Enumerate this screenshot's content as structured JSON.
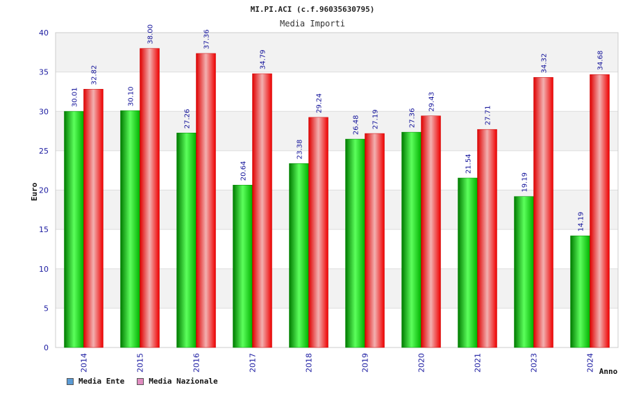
{
  "chart_data": {
    "type": "bar",
    "title": "MI.PI.ACI (c.f.96035630795)",
    "subtitle": "Media Importi",
    "xlabel": "Anno",
    "ylabel": "Euro",
    "ylim": [
      0,
      40
    ],
    "yticks": [
      "0",
      "5",
      "10",
      "15",
      "20",
      "25",
      "30",
      "35",
      "40"
    ],
    "grid": true,
    "legend_position": "bottom-left",
    "categories": [
      "2014",
      "2015",
      "2016",
      "2017",
      "2018",
      "2019",
      "2020",
      "2021",
      "2023",
      "2024"
    ],
    "series": [
      {
        "name": "Media Ente",
        "color": "#00b000",
        "legend_color": "#5b9bd5",
        "values": [
          30.01,
          30.1,
          27.26,
          20.64,
          23.38,
          26.48,
          27.36,
          21.54,
          19.19,
          14.19
        ],
        "labels": [
          "30.01",
          "30.10",
          "27.26",
          "20.64",
          "23.38",
          "26.48",
          "27.36",
          "21.54",
          "19.19",
          "14.19"
        ]
      },
      {
        "name": "Media Nazionale",
        "color": "#ee0000",
        "legend_color": "#e08cc0",
        "values": [
          32.82,
          38.0,
          37.36,
          34.79,
          29.24,
          27.19,
          29.43,
          27.71,
          34.32,
          34.68
        ],
        "labels": [
          "32.82",
          "38.00",
          "37.36",
          "34.79",
          "29.24",
          "27.19",
          "29.43",
          "27.71",
          "34.32",
          "34.68"
        ]
      }
    ]
  }
}
